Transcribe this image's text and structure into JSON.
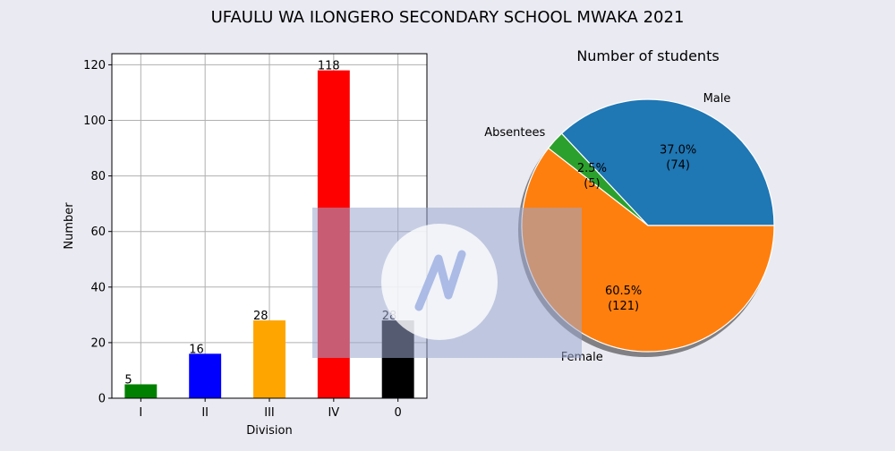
{
  "figure": {
    "title": "UFAULU WA ILONGERO SECONDARY SCHOOL MWAKA 2021"
  },
  "chart_data": [
    {
      "type": "bar",
      "title": "",
      "categories": [
        "I",
        "II",
        "III",
        "IV",
        "0"
      ],
      "values": [
        5,
        16,
        28,
        118,
        28
      ],
      "colors": [
        "#008000",
        "#0000ff",
        "#ffa500",
        "#ff0000",
        "#000000"
      ],
      "xlabel": "Division",
      "ylabel": "Number",
      "ylim": [
        0,
        124
      ],
      "yticks": [
        0,
        20,
        40,
        60,
        80,
        100,
        120
      ],
      "grid": true
    },
    {
      "type": "pie",
      "title": "Number of students",
      "labels": [
        "Male",
        "Absentees",
        "Female"
      ],
      "values": [
        74,
        5,
        121
      ],
      "percent_labels": [
        "37.0%",
        "2.5%",
        "60.5%"
      ],
      "count_labels": [
        "(74)",
        "(5)",
        "(121)"
      ],
      "colors": [
        "#1f77b4",
        "#2ca02c",
        "#ff7f0e"
      ],
      "shadow": true
    }
  ]
}
